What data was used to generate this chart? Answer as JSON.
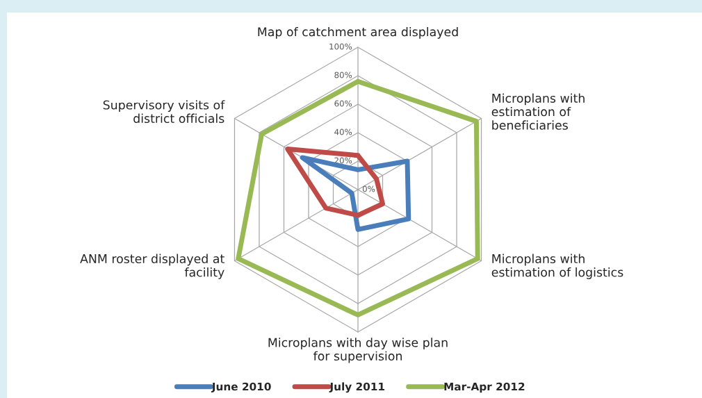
{
  "chart_data": {
    "type": "radar",
    "categories": [
      "Map of catchment area displayed",
      "Microplans with\nestimation of\nbeneficiaries",
      "Microplans with\nestimation of logistics",
      "Microplans with day wise plan\nfor supervision",
      "ANM roster displayed at\nfacility",
      "Supervisory visits of\ndistrict officials"
    ],
    "series": [
      {
        "name": "June 2010",
        "color": "#4a7ebb",
        "values": [
          14,
          40,
          41,
          28,
          5,
          45
        ]
      },
      {
        "name": "July 2011",
        "color": "#be4b48",
        "values": [
          24,
          15,
          20,
          18,
          26,
          57
        ]
      },
      {
        "name": "Mar-Apr 2012",
        "color": "#98b954",
        "values": [
          76,
          96,
          97,
          88,
          97,
          78
        ]
      }
    ],
    "ylim": [
      0,
      100
    ],
    "yticks": [
      {
        "value": 0,
        "label": "0%"
      },
      {
        "value": 20,
        "label": "20%"
      },
      {
        "value": 40,
        "label": "40%"
      },
      {
        "value": 60,
        "label": "60%"
      },
      {
        "value": 80,
        "label": "80%"
      },
      {
        "value": 100,
        "label": "100%"
      }
    ],
    "grid": true,
    "legend": "bottom",
    "marker": "none",
    "line_style": "solid"
  }
}
